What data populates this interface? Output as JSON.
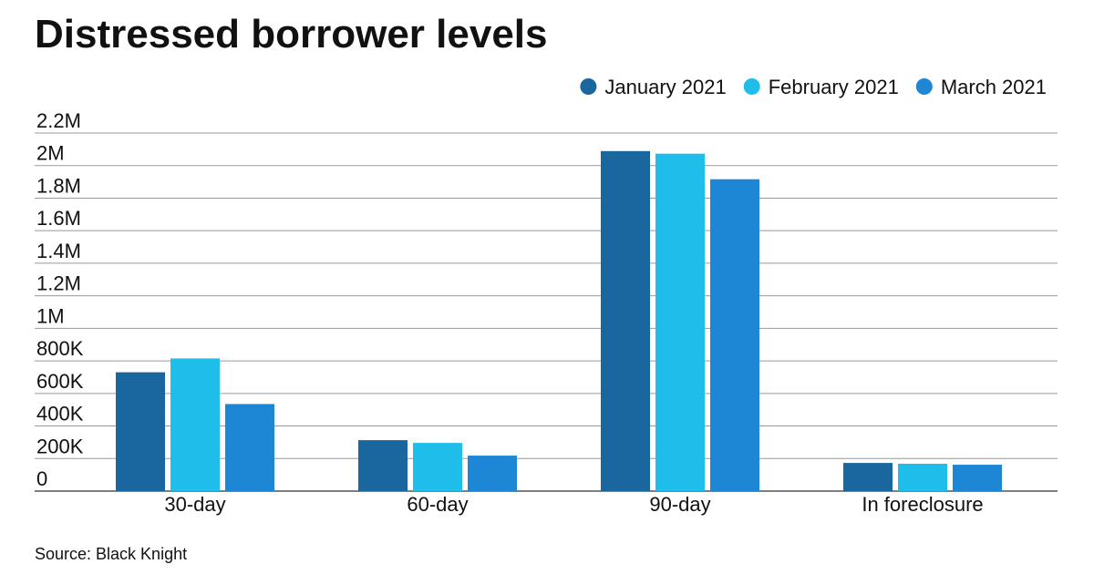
{
  "chart_data": {
    "type": "bar",
    "title": "Distressed borrower levels",
    "source": "Source: Black Knight",
    "categories": [
      "30-day",
      "60-day",
      "90-day",
      "In foreclosure"
    ],
    "series": [
      {
        "name": "January 2021",
        "color": "#1a67a0",
        "values": [
          730000,
          313000,
          2089000,
          173000
        ]
      },
      {
        "name": "February 2021",
        "color": "#1fbde9",
        "values": [
          815000,
          296000,
          2073000,
          168000
        ]
      },
      {
        "name": "March 2021",
        "color": "#1e87d5",
        "values": [
          535000,
          218000,
          1916000,
          162000
        ]
      }
    ],
    "ylim": [
      0,
      2200000
    ],
    "yticks": [
      {
        "value": 0,
        "label": "0"
      },
      {
        "value": 200000,
        "label": "200K"
      },
      {
        "value": 400000,
        "label": "400K"
      },
      {
        "value": 600000,
        "label": "600K"
      },
      {
        "value": 800000,
        "label": "800K"
      },
      {
        "value": 1000000,
        "label": "1M"
      },
      {
        "value": 1200000,
        "label": "1.2M"
      },
      {
        "value": 1400000,
        "label": "1.4M"
      },
      {
        "value": 1600000,
        "label": "1.6M"
      },
      {
        "value": 1800000,
        "label": "1.8M"
      },
      {
        "value": 2000000,
        "label": "2M"
      },
      {
        "value": 2200000,
        "label": "2.2M"
      }
    ],
    "grid": true
  }
}
